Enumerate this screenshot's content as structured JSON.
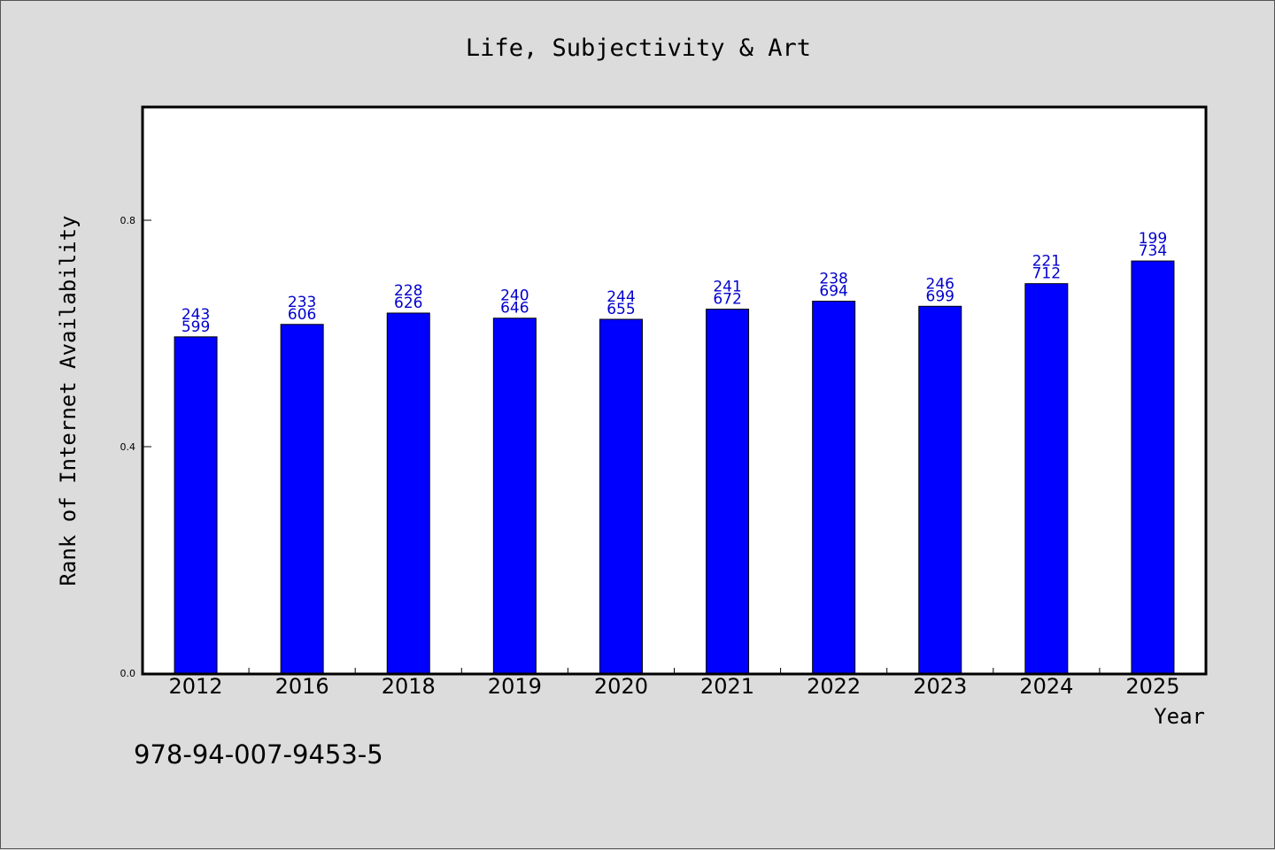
{
  "chart_data": {
    "type": "bar",
    "title": "Life, Subjectivity & Art",
    "xlabel": "Year",
    "ylabel": "Rank of Internet Availability",
    "categories": [
      "2012",
      "2016",
      "2018",
      "2019",
      "2020",
      "2021",
      "2022",
      "2023",
      "2024",
      "2025"
    ],
    "values": [
      0.594,
      0.616,
      0.636,
      0.627,
      0.625,
      0.643,
      0.657,
      0.648,
      0.688,
      0.728
    ],
    "labels_top": [
      "243",
      "233",
      "228",
      "240",
      "244",
      "241",
      "238",
      "246",
      "221",
      "199"
    ],
    "labels_bottom": [
      "599",
      "606",
      "626",
      "646",
      "655",
      "672",
      "694",
      "699",
      "712",
      "734"
    ],
    "ylim": [
      0,
      1.0
    ],
    "yticks": [
      0.0,
      0.4,
      0.8
    ],
    "ytick_labels": [
      "0.0",
      "0.4",
      "0.8"
    ],
    "grid": false,
    "bar_color": "#0000ff",
    "label_color": "#0000cc",
    "background_color": "#dcdcdc",
    "plot_background": "#ffffff"
  },
  "footer": {
    "isbn": "978-94-007-9453-5"
  }
}
